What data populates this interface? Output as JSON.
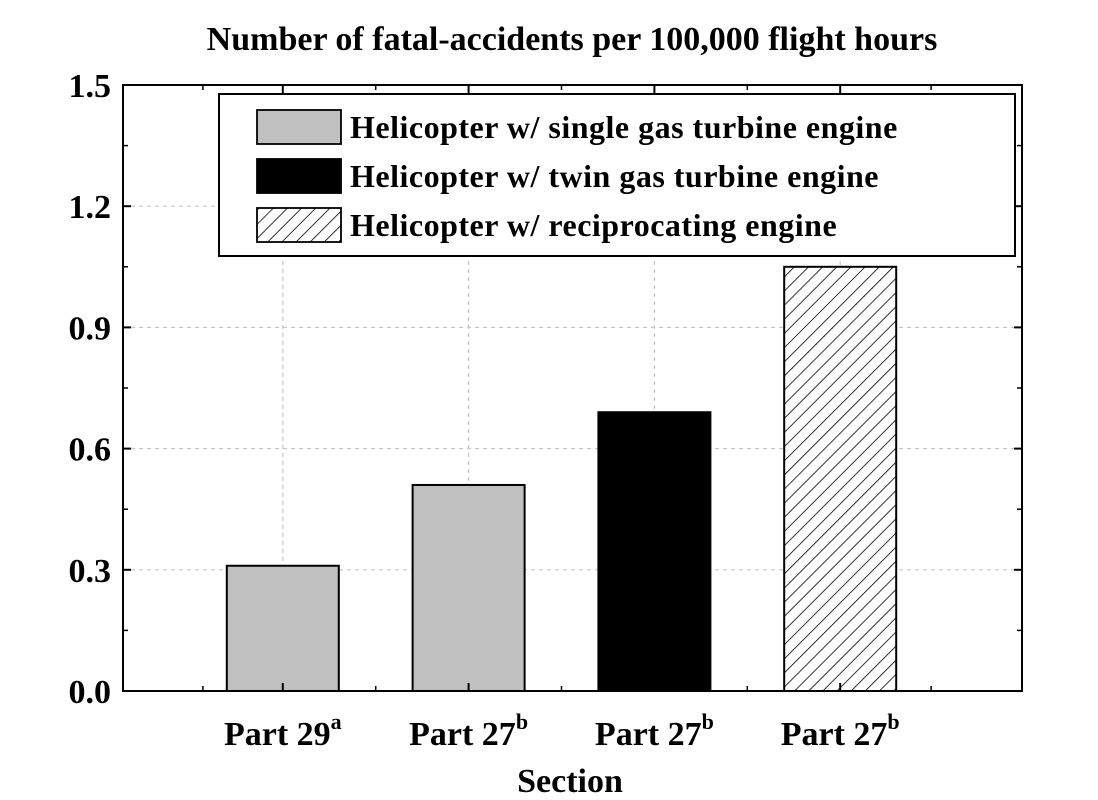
{
  "chart_data": {
    "type": "bar",
    "title": "Number of fatal-accidents per 100,000 flight hours",
    "xlabel": "Section",
    "ylabel": "",
    "ylim": [
      0,
      1.5
    ],
    "yticks": [
      "0.0",
      "0.3",
      "0.6",
      "0.9",
      "1.2",
      "1.5"
    ],
    "grid": true,
    "legend_position": "top-right",
    "categories": [
      {
        "label": "Part 29",
        "sup": "a"
      },
      {
        "label": "Part 27",
        "sup": "b"
      },
      {
        "label": "Part 27",
        "sup": "b"
      },
      {
        "label": "Part 27",
        "sup": "b"
      }
    ],
    "bars": [
      {
        "value": 0.31,
        "series": "Helicopter w/ single gas turbine engine"
      },
      {
        "value": 0.51,
        "series": "Helicopter w/ single gas turbine engine"
      },
      {
        "value": 0.69,
        "series": "Helicopter w/ twin gas turbine engine"
      },
      {
        "value": 1.05,
        "series": "Helicopter w/ reciprocating engine"
      }
    ],
    "series": [
      {
        "name": "Helicopter w/ single gas turbine engine",
        "fill": "#c0c0c0",
        "pattern": "solid"
      },
      {
        "name": "Helicopter w/ twin gas turbine engine",
        "fill": "#000000",
        "pattern": "solid"
      },
      {
        "name": "Helicopter w/ reciprocating engine",
        "fill": "#ffffff",
        "pattern": "diagonal-hatch"
      }
    ]
  }
}
